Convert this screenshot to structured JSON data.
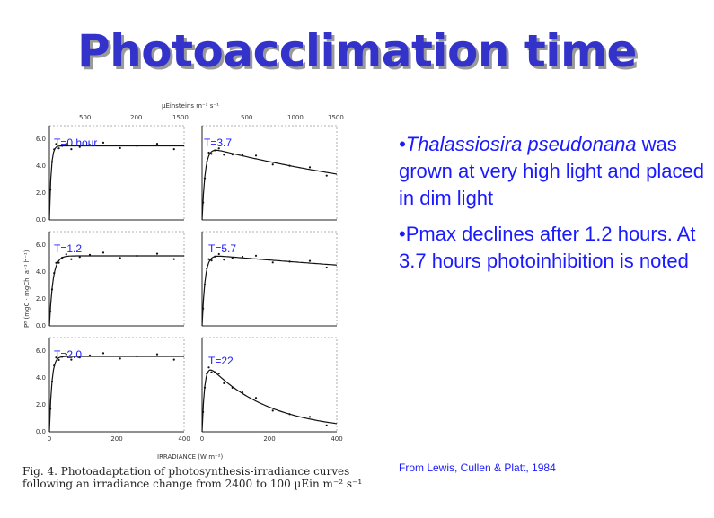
{
  "title": "Photoacclimation time",
  "figure": {
    "top_axis_label": "µEinsteins m⁻² s⁻¹",
    "top_ticks": [
      "500",
      "200",
      "1500",
      "500",
      "1000",
      "1500"
    ],
    "x_axis_label": "IRRADIANCE (W m⁻²)",
    "y_axis_label": "Pᴮ (mgC · mgChl a⁻¹ h⁻¹)",
    "x_ticks_left": [
      "0",
      "200",
      "400"
    ],
    "x_ticks_right": [
      "0",
      "200",
      "400"
    ],
    "y_ticks": [
      "0.0",
      "2.0",
      "4.0",
      "6.0"
    ],
    "panels": [
      {
        "label": "T=0 hour",
        "pmax": 5.5,
        "alpha": 0.11,
        "beta": 0
      },
      {
        "label": "T=3.7",
        "pmax": 5.5,
        "alpha": 0.06,
        "beta": 0.0012
      },
      {
        "label": "T=1.2",
        "pmax": 5.2,
        "alpha": 0.05,
        "beta": 0
      },
      {
        "label": "T=5.7",
        "pmax": 5.3,
        "alpha": 0.06,
        "beta": 0.0004
      },
      {
        "label": "T=2.0",
        "pmax": 5.6,
        "alpha": 0.08,
        "beta": 0
      },
      {
        "label": "T=22",
        "pmax": 5.5,
        "alpha": 0.07,
        "beta": 0.0055
      }
    ]
  },
  "caption": "Fig. 4. Photoadaptation of photosynthesis-irradiance curves following an irradiance change from 2400 to 100 µEin m⁻² s⁻¹",
  "bullets": {
    "b1_italic": "•Thalassiosira pseudonana",
    "b1_rest": " was grown at very high light and placed in dim light",
    "b2": "•Pmax declines after 1.2 hours. At 3.7 hours photoinhibition is noted"
  },
  "citation": "From Lewis, Cullen & Platt, 1984",
  "colors": {
    "title": "#3333cc",
    "text": "#1a1aff",
    "shadow": "#9a9a9a"
  }
}
